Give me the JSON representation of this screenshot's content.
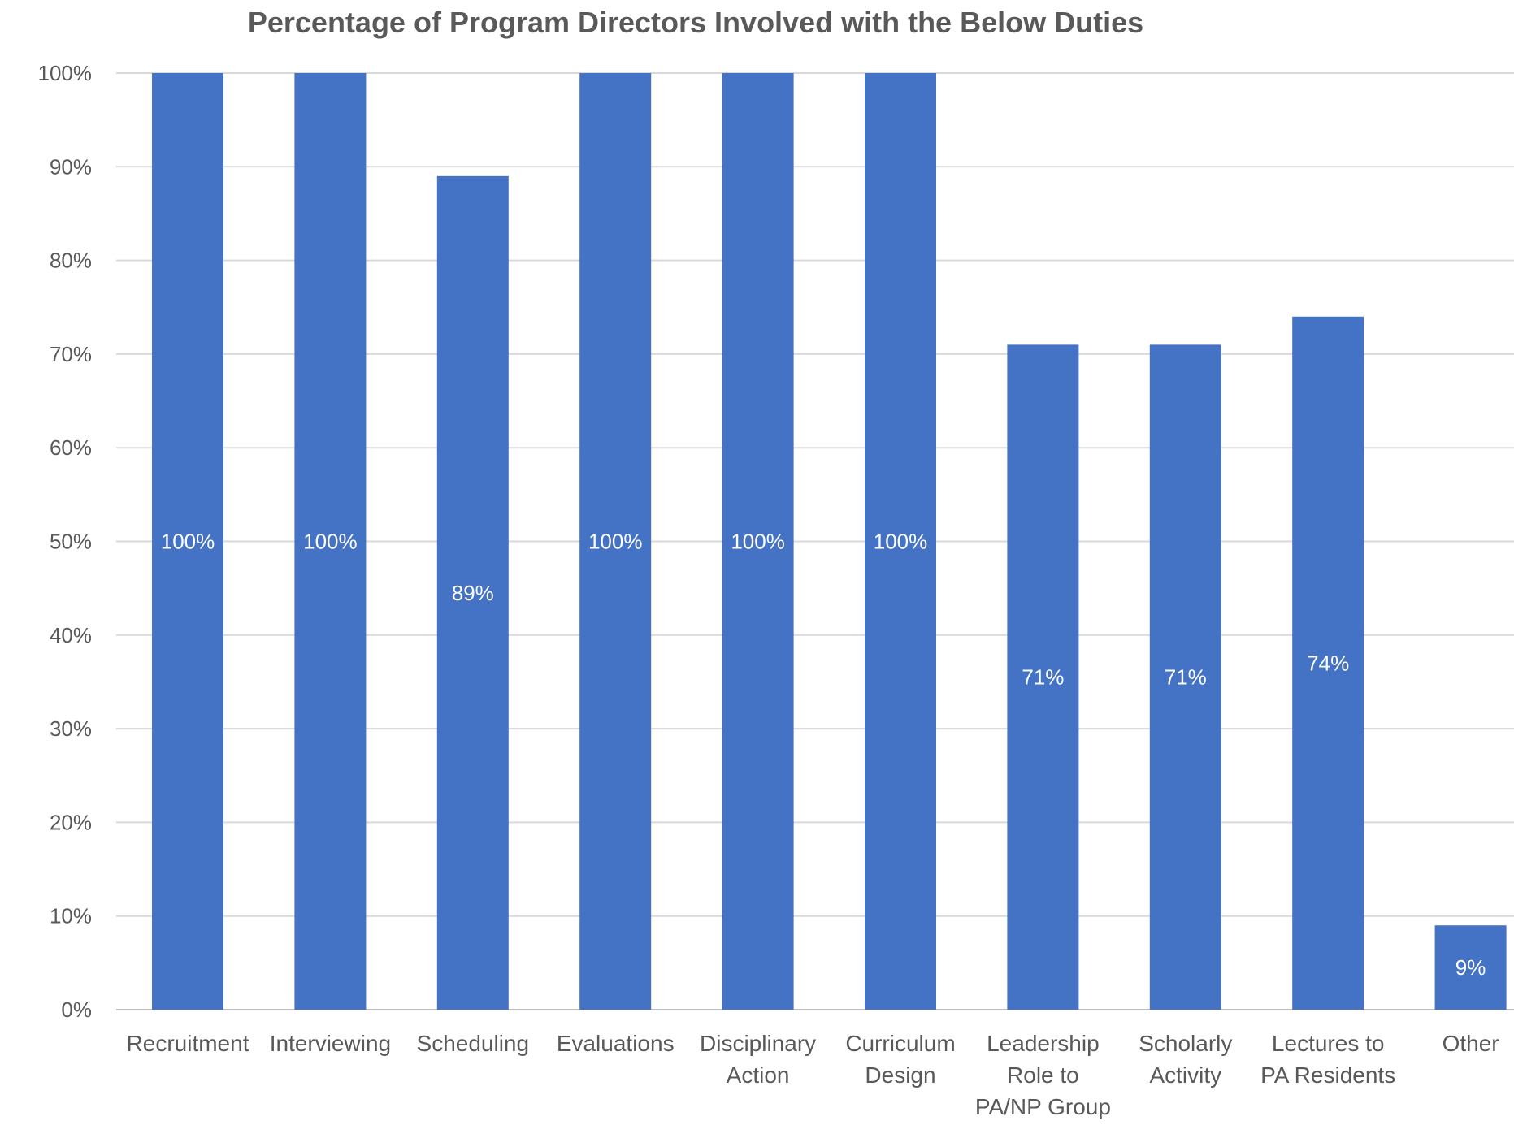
{
  "chart_data": {
    "type": "bar",
    "title": "Percentage of Program Directors Involved with the Below Duties",
    "xlabel": "",
    "ylabel": "",
    "ylim": [
      0,
      100
    ],
    "y_ticks": [
      "0%",
      "10%",
      "20%",
      "30%",
      "40%",
      "50%",
      "60%",
      "70%",
      "80%",
      "90%",
      "100%"
    ],
    "grid": true,
    "bar_color": "#4472C4",
    "categories": [
      [
        "Recruitment"
      ],
      [
        "Interviewing"
      ],
      [
        "Scheduling"
      ],
      [
        "Evaluations"
      ],
      [
        "Disciplinary",
        "Action"
      ],
      [
        "Curriculum",
        "Design"
      ],
      [
        "Leadership",
        "Role to",
        "PA/NP Group"
      ],
      [
        "Scholarly",
        "Activity"
      ],
      [
        "Lectures to",
        "PA Residents"
      ],
      [
        "Other"
      ]
    ],
    "values": [
      100,
      100,
      89,
      100,
      100,
      100,
      71,
      71,
      74,
      9
    ],
    "data_labels": [
      "100%",
      "100%",
      "89%",
      "100%",
      "100%",
      "100%",
      "71%",
      "71%",
      "74%",
      "9%"
    ]
  }
}
